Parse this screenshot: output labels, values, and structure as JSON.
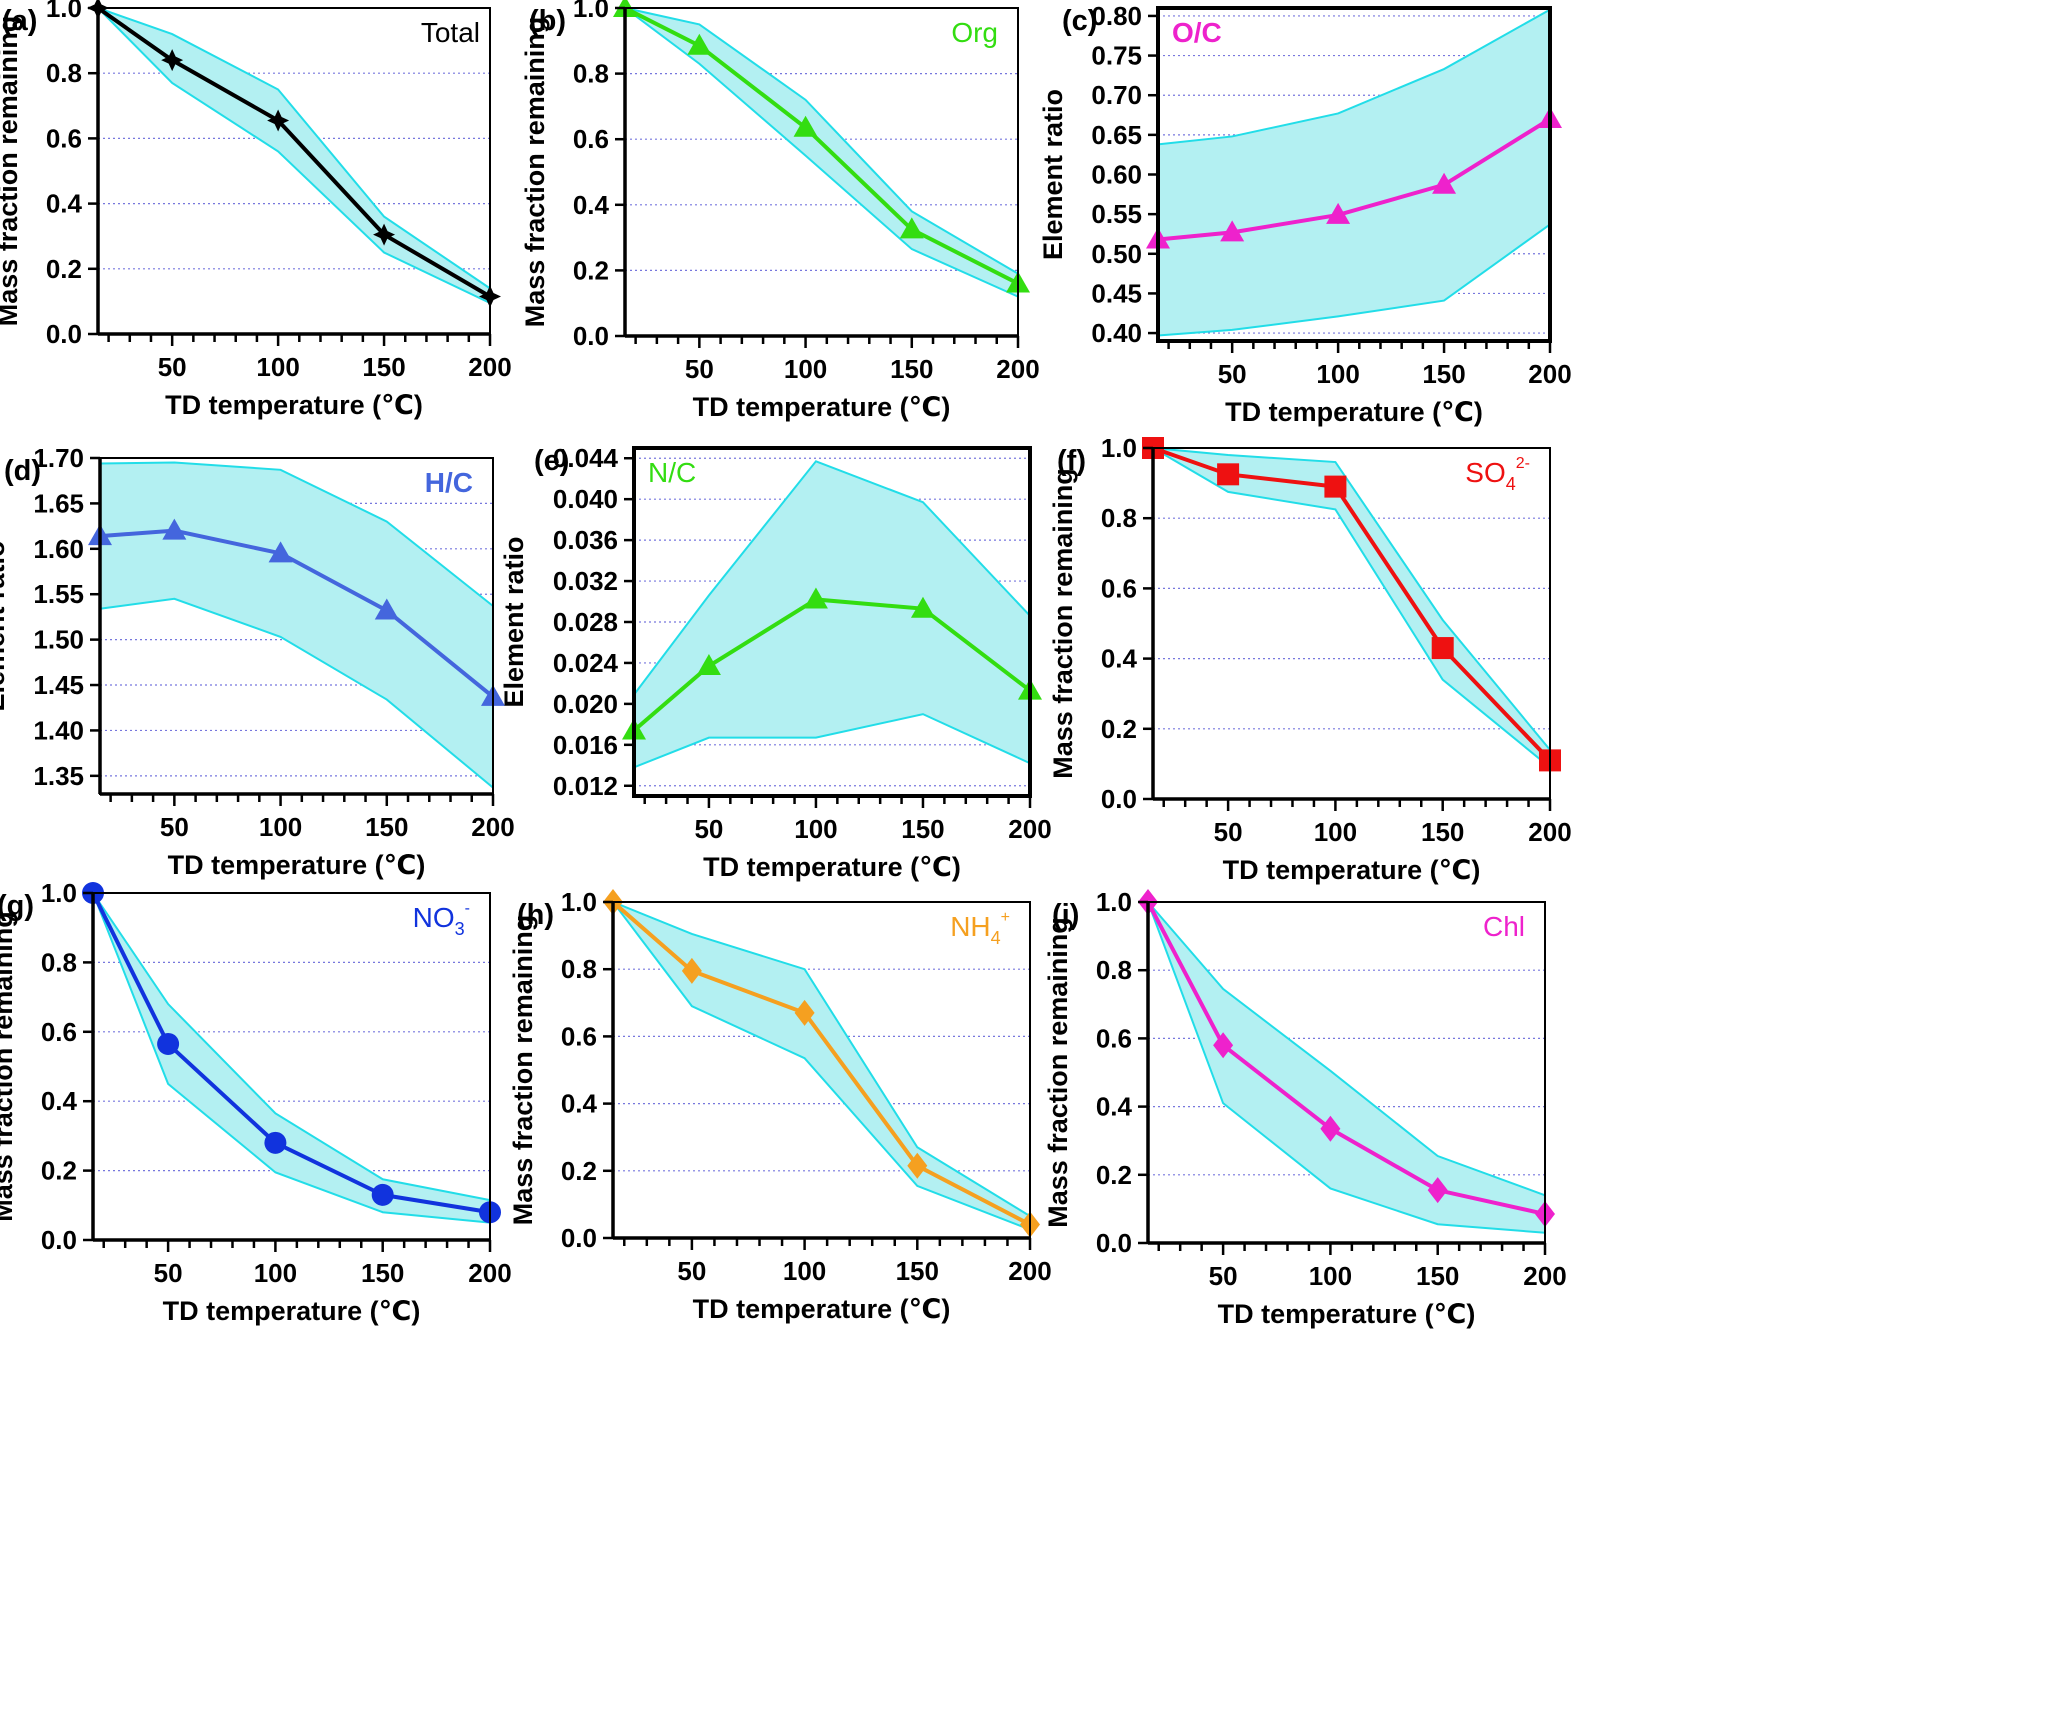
{
  "chart_data": [
    {
      "id": "a",
      "type": "line",
      "panel_label": "(a)",
      "species": "Total",
      "species_sub": "",
      "species_sup": "",
      "species_bold": false,
      "color": "#000000",
      "marker": "star4",
      "frame_bold": false,
      "xlabel": "TD  temperature (℃)",
      "ylabel": "Mass fraction remaining",
      "xlim": [
        15,
        200
      ],
      "ylim": [
        0,
        1
      ],
      "xticks": [
        "50",
        "100",
        "150",
        "200"
      ],
      "yticks": [
        "0.0",
        "0.2",
        "0.4",
        "0.6",
        "0.8",
        "1.0"
      ],
      "x": [
        15,
        50,
        100,
        150,
        200
      ],
      "y": [
        1.0,
        0.84,
        0.655,
        0.305,
        0.115
      ],
      "band_upper": [
        1.0,
        0.92,
        0.75,
        0.36,
        0.14
      ],
      "band_lower": [
        1.0,
        0.77,
        0.56,
        0.25,
        0.095
      ]
    },
    {
      "id": "b",
      "type": "line",
      "panel_label": "(b)",
      "species": "Org",
      "species_sub": "",
      "species_sup": "",
      "species_bold": false,
      "color": "#33dd11",
      "marker": "triangle",
      "frame_bold": false,
      "xlabel": "TD  temperature (℃)",
      "ylabel": "Mass fraction remaining",
      "xlim": [
        15,
        200
      ],
      "ylim": [
        0,
        1
      ],
      "xticks": [
        "50",
        "100",
        "150",
        "200"
      ],
      "yticks": [
        "0.0",
        "0.2",
        "0.4",
        "0.6",
        "0.8",
        "1.0"
      ],
      "x": [
        15,
        50,
        100,
        150,
        200
      ],
      "y": [
        1.0,
        0.885,
        0.635,
        0.325,
        0.16
      ],
      "band_upper": [
        1.0,
        0.95,
        0.72,
        0.38,
        0.19
      ],
      "band_lower": [
        1.0,
        0.83,
        0.55,
        0.265,
        0.12
      ]
    },
    {
      "id": "c",
      "type": "line",
      "panel_label": "(c)",
      "species": "O/C",
      "species_sub": "",
      "species_sup": "",
      "species_bold": true,
      "color": "#ee22cc",
      "marker": "triangle",
      "frame_bold": true,
      "xlabel": "TD  temperature (℃)",
      "ylabel": "Element ratio",
      "xlim": [
        15,
        200
      ],
      "ylim": [
        0.39,
        0.81
      ],
      "xticks": [
        "50",
        "100",
        "150",
        "200"
      ],
      "yticks": [
        "0.40",
        "0.45",
        "0.50",
        "0.55",
        "0.60",
        "0.65",
        "0.70",
        "0.75",
        "0.80"
      ],
      "x": [
        15,
        50,
        100,
        150,
        200
      ],
      "y": [
        0.518,
        0.527,
        0.549,
        0.587,
        0.67
      ],
      "band_upper": [
        0.638,
        0.648,
        0.677,
        0.733,
        0.808
      ],
      "band_lower": [
        0.397,
        0.404,
        0.421,
        0.441,
        0.537
      ]
    },
    {
      "id": "d",
      "type": "line",
      "panel_label": "(d)",
      "species": "H/C",
      "species_sub": "",
      "species_sup": "",
      "species_bold": true,
      "color": "#4466dd",
      "marker": "triangle",
      "frame_bold": false,
      "xlabel": "TD  temperature (℃)",
      "ylabel": "Element ratio",
      "xlim": [
        15,
        200
      ],
      "ylim": [
        1.33,
        1.7
      ],
      "xticks": [
        "50",
        "100",
        "150",
        "200"
      ],
      "yticks": [
        "1.35",
        "1.40",
        "1.45",
        "1.50",
        "1.55",
        "1.60",
        "1.65",
        "1.70"
      ],
      "x": [
        15,
        50,
        100,
        150,
        200
      ],
      "y": [
        1.614,
        1.62,
        1.595,
        1.532,
        1.437
      ],
      "band_upper": [
        1.694,
        1.695,
        1.687,
        1.63,
        1.537
      ],
      "band_lower": [
        1.534,
        1.545,
        1.503,
        1.434,
        1.337
      ]
    },
    {
      "id": "e",
      "type": "line",
      "panel_label": "(e)",
      "species": "N/C",
      "species_sub": "",
      "species_sup": "",
      "species_bold": false,
      "color": "#33dd11",
      "marker": "triangle",
      "frame_bold": true,
      "xlabel": "TD  temperature (℃)",
      "ylabel": "Element ratio",
      "xlim": [
        15,
        200
      ],
      "ylim": [
        0.011,
        0.045
      ],
      "xticks": [
        "50",
        "100",
        "150",
        "200"
      ],
      "yticks": [
        "0.012",
        "0.016",
        "0.020",
        "0.024",
        "0.028",
        "0.032",
        "0.036",
        "0.040",
        "0.044"
      ],
      "x": [
        15,
        50,
        100,
        150,
        200
      ],
      "y": [
        0.0174,
        0.0237,
        0.0302,
        0.0293,
        0.0213
      ],
      "band_upper": [
        0.0209,
        0.0306,
        0.0437,
        0.0397,
        0.0286
      ],
      "band_lower": [
        0.0138,
        0.0167,
        0.0167,
        0.019,
        0.0142
      ]
    },
    {
      "id": "f",
      "type": "line",
      "panel_label": "(f)",
      "species": "SO",
      "species_sub": "4",
      "species_sup": "2-",
      "species_bold": false,
      "color": "#ee1111",
      "marker": "square",
      "frame_bold": false,
      "xlabel": "TD  temperature (℃)",
      "ylabel": "Mass fraction remaining",
      "xlim": [
        15,
        200
      ],
      "ylim": [
        0,
        1
      ],
      "xticks": [
        "50",
        "100",
        "150",
        "200"
      ],
      "yticks": [
        "0.0",
        "0.2",
        "0.4",
        "0.6",
        "0.8",
        "1.0"
      ],
      "x": [
        15,
        50,
        100,
        150,
        200
      ],
      "y": [
        1.0,
        0.925,
        0.89,
        0.43,
        0.11
      ],
      "band_upper": [
        1.0,
        0.98,
        0.96,
        0.51,
        0.14
      ],
      "band_lower": [
        1.0,
        0.875,
        0.825,
        0.34,
        0.09
      ]
    },
    {
      "id": "g",
      "type": "line",
      "panel_label": "(g)",
      "species": "NO",
      "species_sub": "3",
      "species_sup": "-",
      "species_bold": false,
      "color": "#1133dd",
      "marker": "circle",
      "frame_bold": false,
      "xlabel": "TD  temperature (℃)",
      "ylabel": "Mass fraction remaining",
      "xlim": [
        15,
        200
      ],
      "ylim": [
        0,
        1
      ],
      "xticks": [
        "50",
        "100",
        "150",
        "200"
      ],
      "yticks": [
        "0.0",
        "0.2",
        "0.4",
        "0.6",
        "0.8",
        "1.0"
      ],
      "x": [
        15,
        50,
        100,
        150,
        200
      ],
      "y": [
        1.0,
        0.565,
        0.28,
        0.13,
        0.08
      ],
      "band_upper": [
        1.0,
        0.68,
        0.365,
        0.175,
        0.115
      ],
      "band_lower": [
        1.0,
        0.45,
        0.195,
        0.08,
        0.05
      ]
    },
    {
      "id": "h",
      "type": "line",
      "panel_label": "(h)",
      "species": "NH",
      "species_sub": "4",
      "species_sup": "+",
      "species_bold": false,
      "color": "#f5a020",
      "marker": "diamond",
      "frame_bold": false,
      "xlabel": "TD  temperature (℃)",
      "ylabel": "Mass fraction remaining",
      "xlim": [
        15,
        200
      ],
      "ylim": [
        0,
        1
      ],
      "xticks": [
        "50",
        "100",
        "150",
        "200"
      ],
      "yticks": [
        "0.0",
        "0.2",
        "0.4",
        "0.6",
        "0.8",
        "1.0"
      ],
      "x": [
        15,
        50,
        100,
        150,
        200
      ],
      "y": [
        1.0,
        0.795,
        0.67,
        0.215,
        0.04
      ],
      "band_upper": [
        1.0,
        0.905,
        0.8,
        0.27,
        0.065
      ],
      "band_lower": [
        1.0,
        0.69,
        0.535,
        0.155,
        0.025
      ]
    },
    {
      "id": "i",
      "type": "line",
      "panel_label": "(i)",
      "species": "Chl",
      "species_sub": "",
      "species_sup": "",
      "species_bold": false,
      "color": "#ee22cc",
      "marker": "diamond",
      "frame_bold": false,
      "xlabel": "TD  temperature (℃)",
      "ylabel": "Mass fraction remaining",
      "xlim": [
        15,
        200
      ],
      "ylim": [
        0,
        1
      ],
      "xticks": [
        "50",
        "100",
        "150",
        "200"
      ],
      "yticks": [
        "0.0",
        "0.2",
        "0.4",
        "0.6",
        "0.8",
        "1.0"
      ],
      "x": [
        15,
        50,
        100,
        150,
        200
      ],
      "y": [
        1.0,
        0.58,
        0.335,
        0.155,
        0.085
      ],
      "band_upper": [
        1.0,
        0.745,
        0.505,
        0.255,
        0.14
      ],
      "band_lower": [
        1.0,
        0.41,
        0.16,
        0.055,
        0.03
      ]
    }
  ],
  "style": {
    "band_fill": "#b3f0f2",
    "band_edge": "#22dde8",
    "grid_color": "#7777dd"
  }
}
